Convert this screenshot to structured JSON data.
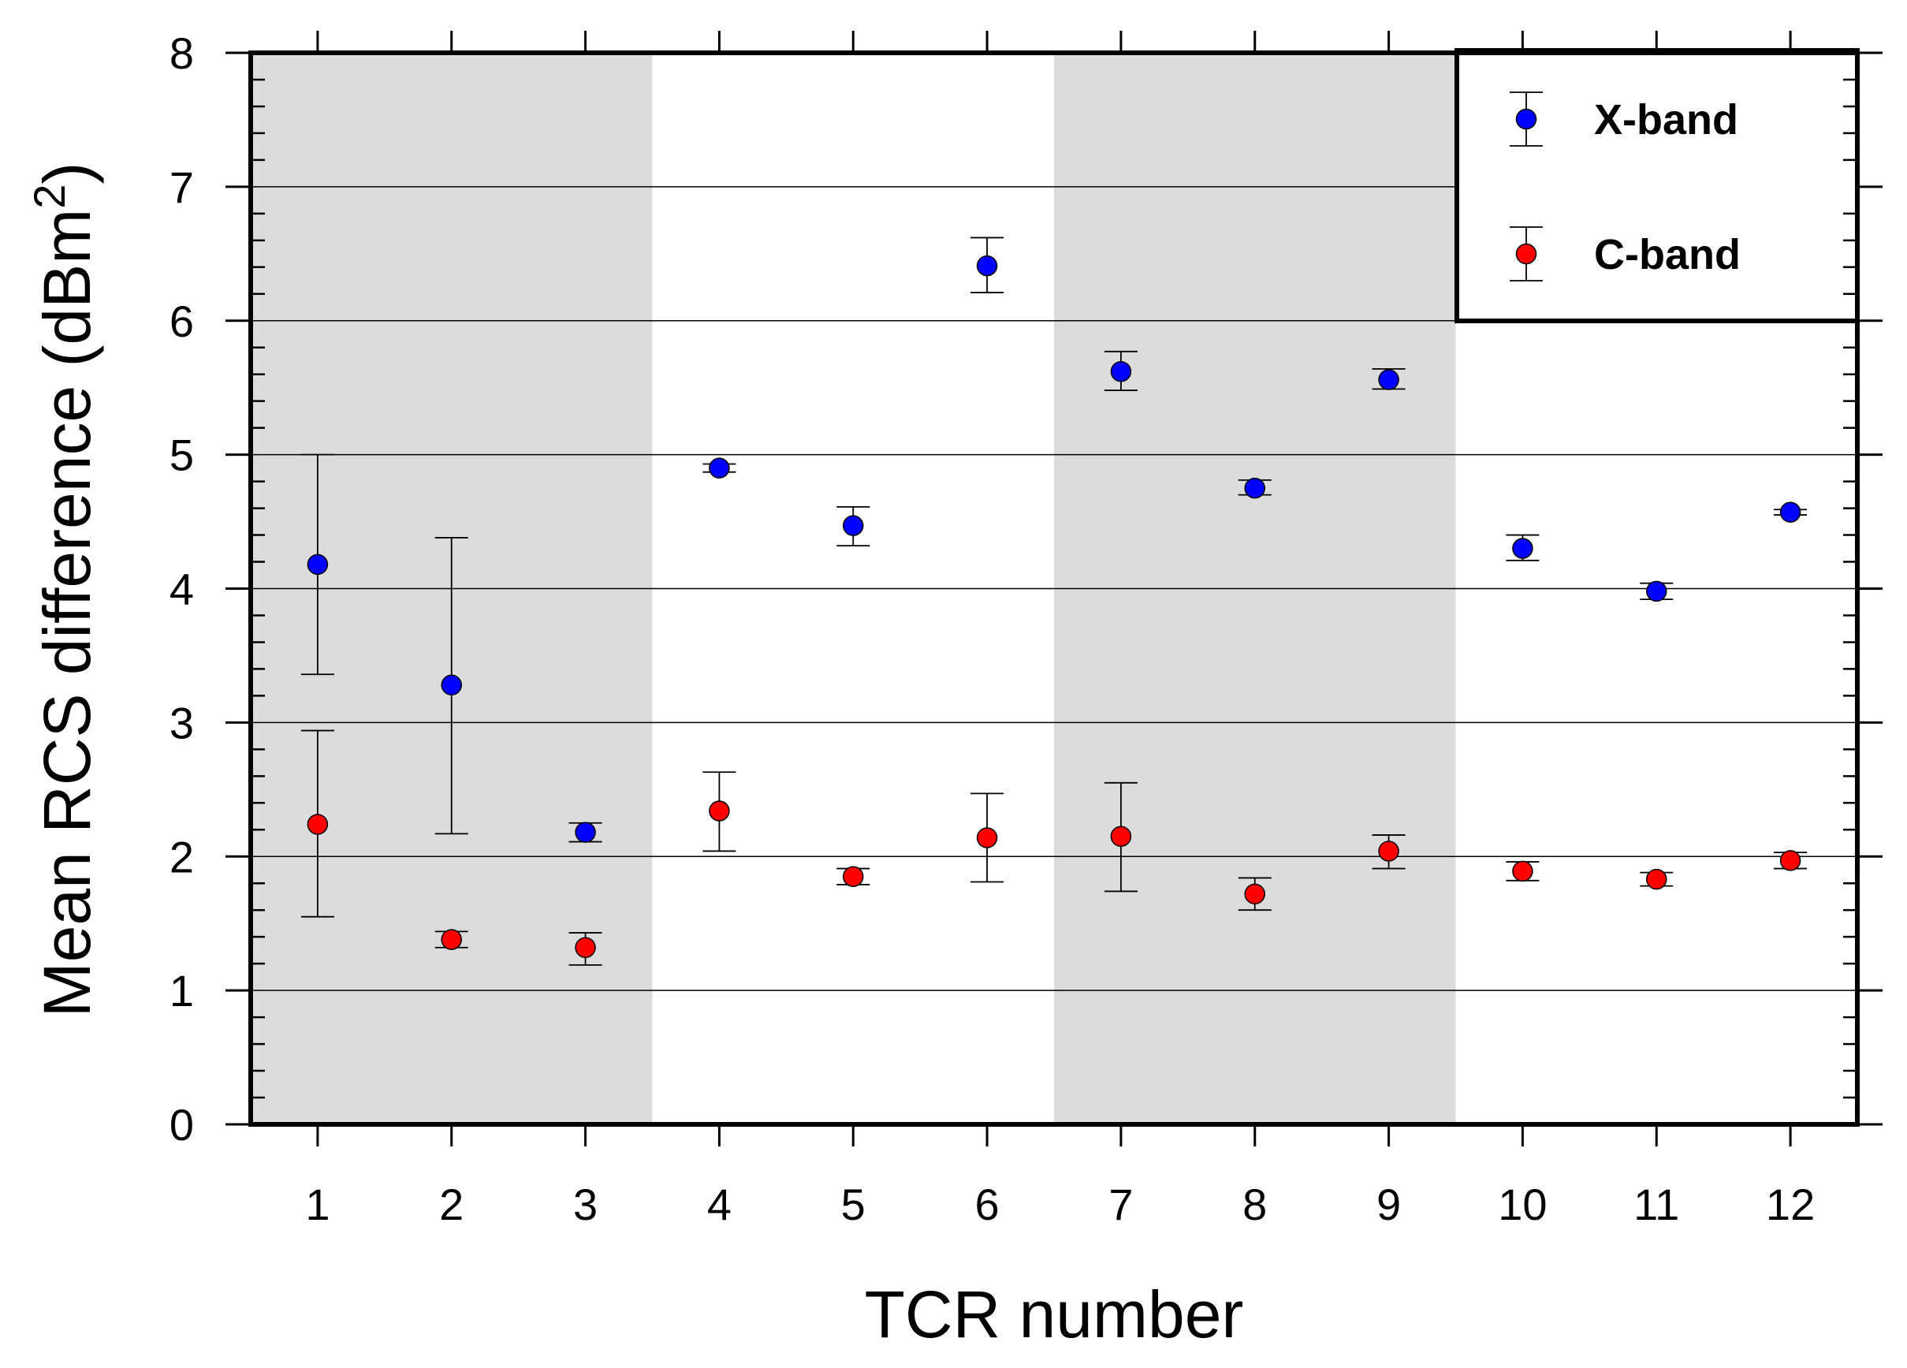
{
  "chart_data": {
    "type": "scatter",
    "xlabel": "TCR number",
    "ylabel": "Mean RCS difference (dBm",
    "ylabel_superscript": "2",
    "ylabel_close": ")",
    "x": [
      1,
      2,
      3,
      4,
      5,
      6,
      7,
      8,
      9,
      10,
      11,
      12
    ],
    "x_tick_labels": [
      "1",
      "2",
      "3",
      "4",
      "5",
      "6",
      "7",
      "8",
      "9",
      "10",
      "11",
      "12"
    ],
    "y_tick_labels": [
      "0",
      "1",
      "2",
      "3",
      "4",
      "5",
      "6",
      "7",
      "8"
    ],
    "xlim": [
      0.5,
      12.5
    ],
    "ylim": [
      0,
      8
    ],
    "grid": "horizontal",
    "legend_position": "top-right",
    "shaded_x_ranges": [
      [
        0.5,
        3.5
      ],
      [
        6.5,
        9.5
      ]
    ],
    "series": [
      {
        "name": "X-band",
        "color": "#0000ff",
        "values": [
          4.18,
          3.28,
          2.18,
          4.9,
          4.47,
          6.41,
          5.62,
          4.75,
          5.56,
          4.3,
          3.98,
          4.57
        ],
        "err_low": [
          3.36,
          2.17,
          2.11,
          4.87,
          4.32,
          6.21,
          5.48,
          4.7,
          5.49,
          4.21,
          3.92,
          4.55
        ],
        "err_high": [
          5.0,
          4.38,
          2.25,
          4.93,
          4.61,
          6.62,
          5.77,
          4.81,
          5.64,
          4.4,
          4.04,
          4.59
        ]
      },
      {
        "name": "C-band",
        "color": "#ff0000",
        "values": [
          2.24,
          1.38,
          1.32,
          2.34,
          1.85,
          2.14,
          2.15,
          1.72,
          2.04,
          1.89,
          1.83,
          1.97
        ],
        "err_low": [
          1.55,
          1.32,
          1.19,
          2.04,
          1.79,
          1.81,
          1.74,
          1.6,
          1.91,
          1.82,
          1.78,
          1.91
        ],
        "err_high": [
          2.94,
          1.44,
          1.43,
          2.63,
          1.91,
          2.47,
          2.55,
          1.84,
          2.16,
          1.96,
          1.88,
          2.03
        ]
      }
    ]
  }
}
